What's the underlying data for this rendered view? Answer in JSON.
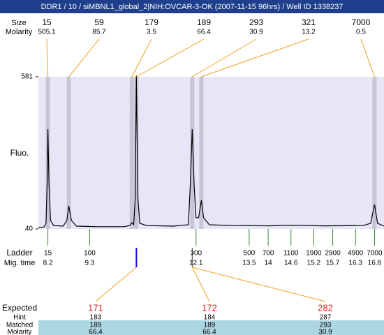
{
  "chart_data": {
    "type": "electropherogram",
    "title": "DDR1 / 10 / siMBNL1_global_2|NIH:OVCAR-3-OK (2007-11-15 96hrs) / Well ID 1338237",
    "peaks": {
      "size_label": "Size",
      "molarity_label": "Molarity",
      "sizes": [
        15,
        59,
        179,
        189,
        293,
        321,
        7000
      ],
      "molarity": [
        505.1,
        85.7,
        3.5,
        66.4,
        30.9,
        13.2,
        0.5
      ],
      "x": [
        8.2,
        8.75,
        10.41,
        10.53,
        12.0,
        12.24,
        16.8
      ]
    },
    "y_label": "Fluo.",
    "ylim": [
      40,
      581
    ],
    "yticks": [
      40,
      581
    ],
    "xlim": [
      7.95,
      17.05
    ],
    "trace": {
      "color": "#000000",
      "x": [
        7.95,
        8.1,
        8.15,
        8.18,
        8.2,
        8.23,
        8.27,
        8.35,
        8.6,
        8.7,
        8.75,
        8.82,
        8.95,
        9.5,
        10.2,
        10.35,
        10.41,
        10.46,
        10.5,
        10.53,
        10.57,
        10.62,
        10.8,
        11.5,
        11.9,
        11.95,
        12.0,
        12.05,
        12.1,
        12.17,
        12.24,
        12.3,
        12.45,
        13,
        14,
        14.6,
        15.5,
        16.5,
        16.7,
        16.8,
        16.88,
        17.05
      ],
      "values": [
        45,
        47,
        60,
        200,
        395,
        200,
        70,
        52,
        50,
        70,
        122,
        70,
        50,
        48,
        48,
        52,
        62,
        55,
        150,
        585,
        150,
        60,
        52,
        50,
        55,
        200,
        395,
        200,
        80,
        80,
        142,
        80,
        55,
        52,
        51,
        53,
        51,
        52,
        60,
        127,
        60,
        50
      ]
    },
    "ladder": {
      "label": "Ladder",
      "time_label": "Mig. time",
      "sizes": [
        15,
        100,
        300,
        500,
        700,
        1100,
        1900,
        2900,
        4900,
        7000
      ],
      "times": [
        8.2,
        9.3,
        12.1,
        13.5,
        14,
        14.6,
        15.2,
        15.7,
        16.3,
        16.8
      ]
    },
    "expected": {
      "expected_label": "Expected",
      "hint_label": "Hint",
      "matched_label": "Matched",
      "molarity_label": "Molarity",
      "expected_color": "#dd2222",
      "expected": [
        171,
        172,
        282
      ],
      "hint": [
        183,
        184,
        287
      ],
      "matched": [
        189,
        189,
        293
      ],
      "molarity": [
        66.4,
        66.4,
        30.9
      ]
    }
  }
}
